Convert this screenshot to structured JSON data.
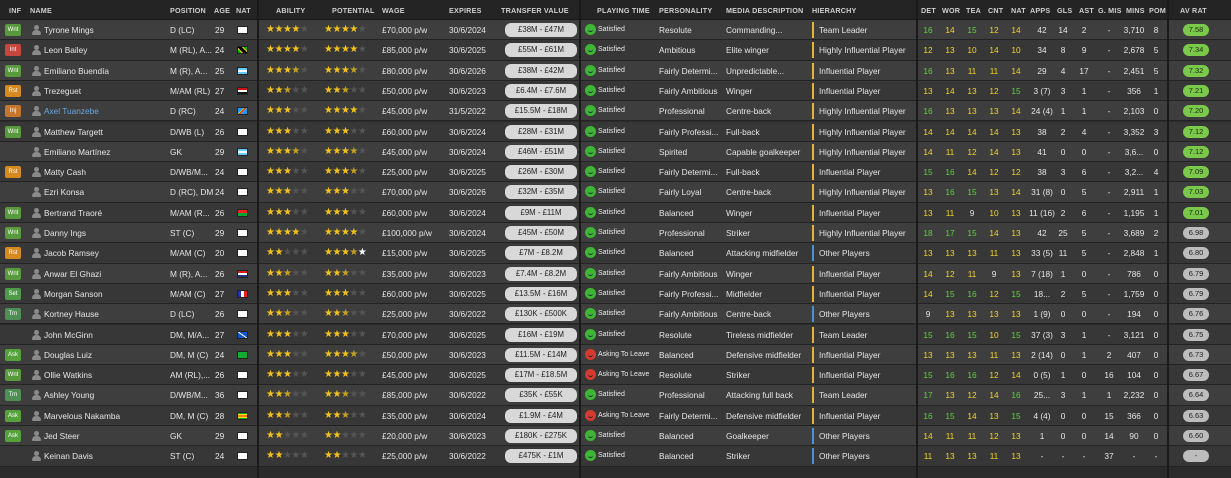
{
  "headers": {
    "inf": "INF",
    "name": "NAME",
    "position": "POSITION",
    "age": "AGE",
    "nat": "NAT",
    "ability": "ABILITY",
    "potential": "POTENTIAL",
    "wage": "WAGE",
    "expires": "EXPIRES",
    "transfer_value": "TRANSFER VALUE",
    "playing_time": "PLAYING TIME",
    "personality": "PERSONALITY",
    "media": "MEDIA DESCRIPTION",
    "hierarchy": "HIERARCHY",
    "det": "DET",
    "wor": "WOR",
    "tea": "TEA",
    "cnt": "CNT",
    "nat2": "NAT",
    "apps": "APPS",
    "gls": "GLS",
    "ast": "AST",
    "gmis": "G. MIS",
    "mins": "MINS",
    "pom": "POM",
    "avrat": "AV RAT"
  },
  "colors": {
    "star": "#f2c21b",
    "green": "#5ed13a",
    "yellow": "#f0d52a",
    "leader_bar": "#e6b437",
    "other_bar": "#4a92d8"
  },
  "players": [
    {
      "inf": "Wnt",
      "name": "Tyrone Mings",
      "pos": "D (LC)",
      "age": "29",
      "nat": "eng",
      "ab": 4,
      "pot": 4,
      "potw": 0,
      "wage": "£70,000 p/w",
      "exp": "30/6/2024",
      "tv": "£38M - £47M",
      "pt": "Satisfied",
      "mood": "s",
      "pers": "Resolute",
      "media": "Commanding...",
      "hier": "Team Leader",
      "hc": "leader",
      "det": "16",
      "wor": "14",
      "tea": "15",
      "cnt": "12",
      "nat2": "14",
      "apps": "42",
      "gls": "14",
      "ast": "2",
      "gmis": "-",
      "mins": "3,710",
      "pom": "8",
      "av": "7.58",
      "avc": "hi"
    },
    {
      "inf": "Int",
      "name": "Leon Bailey",
      "pos": "M (RL), A...",
      "age": "24",
      "nat": "jam",
      "ab": 4,
      "pot": 4,
      "potw": 0,
      "wage": "£85,000 p/w",
      "exp": "30/6/2025",
      "tv": "£55M - £61M",
      "pt": "Satisfied",
      "mood": "s",
      "pers": "Ambitious",
      "media": "Elite winger",
      "hier": "Highly Influential Player",
      "hc": "leader",
      "det": "12",
      "wor": "13",
      "tea": "10",
      "cnt": "14",
      "nat2": "10",
      "apps": "34",
      "gls": "8",
      "ast": "9",
      "gmis": "-",
      "mins": "2,678",
      "pom": "5",
      "av": "7.34",
      "avc": "hi"
    },
    {
      "inf": "Wnt",
      "name": "Emiliano Buendía",
      "pos": "M (R), A...",
      "age": "25",
      "nat": "arg",
      "ab": 3.5,
      "pot": 3.5,
      "potw": 0,
      "wage": "£80,000 p/w",
      "exp": "30/6/2026",
      "tv": "£38M - £42M",
      "pt": "Satisfied",
      "mood": "s",
      "pers": "Fairly Determi...",
      "media": "Unpredictable...",
      "hier": "Influential Player",
      "hc": "leader",
      "det": "16",
      "wor": "13",
      "tea": "11",
      "cnt": "11",
      "nat2": "14",
      "apps": "29",
      "gls": "4",
      "ast": "17",
      "gmis": "-",
      "mins": "2,451",
      "pom": "5",
      "av": "7.32",
      "avc": "hi"
    },
    {
      "inf": "Rst",
      "name": "Trezeguet",
      "pos": "M/AM (RL)",
      "age": "27",
      "nat": "egy",
      "ab": 2.5,
      "pot": 2.5,
      "potw": 0,
      "wage": "£50,000 p/w",
      "exp": "30/6/2023",
      "tv": "£6.4M - £7.6M",
      "pt": "Satisfied",
      "mood": "s",
      "pers": "Fairly Ambitious",
      "media": "Winger",
      "hier": "Influential Player",
      "hc": "leader",
      "det": "13",
      "wor": "14",
      "tea": "13",
      "cnt": "12",
      "nat2": "15",
      "apps": "3 (7)",
      "gls": "3",
      "ast": "1",
      "gmis": "-",
      "mins": "356",
      "pom": "1",
      "av": "7.21",
      "avc": "hi"
    },
    {
      "inf": "Inj",
      "name": "Axel Tuanzebe",
      "pos": "D (RC)",
      "age": "24",
      "nat": "cod",
      "ab": 3,
      "pot": 4,
      "potw": 0,
      "wage": "£45,000 p/w",
      "exp": "31/5/2022",
      "tv": "£15.5M - £18M",
      "pt": "Satisfied",
      "mood": "s",
      "pers": "Professional",
      "media": "Centre-back",
      "hier": "Highly Influential Player",
      "hc": "leader",
      "link": true,
      "det": "16",
      "wor": "13",
      "tea": "13",
      "cnt": "13",
      "nat2": "14",
      "apps": "24 (4)",
      "gls": "1",
      "ast": "1",
      "gmis": "-",
      "mins": "2,103",
      "pom": "0",
      "av": "7.20",
      "avc": "hi"
    },
    {
      "inf": "Wnt",
      "name": "Matthew Targett",
      "pos": "D/WB (L)",
      "age": "26",
      "nat": "eng",
      "ab": 3,
      "pot": 3,
      "potw": 0,
      "wage": "£60,000 p/w",
      "exp": "30/6/2024",
      "tv": "£28M - £31M",
      "pt": "Satisfied",
      "mood": "s",
      "pers": "Fairly Professi...",
      "media": "Full-back",
      "hier": "Highly Influential Player",
      "hc": "leader",
      "det": "14",
      "wor": "14",
      "tea": "14",
      "cnt": "14",
      "nat2": "13",
      "apps": "38",
      "gls": "2",
      "ast": "4",
      "gmis": "-",
      "mins": "3,352",
      "pom": "3",
      "av": "7.12",
      "avc": "hi"
    },
    {
      "inf": "",
      "name": "Emiliano Martínez",
      "pos": "GK",
      "age": "29",
      "nat": "arg",
      "ab": 3.5,
      "pot": 3.5,
      "potw": 0,
      "wage": "£45,000 p/w",
      "exp": "30/6/2024",
      "tv": "£46M - £51M",
      "pt": "Satisfied",
      "mood": "s",
      "pers": "Spirited",
      "media": "Capable goalkeeper",
      "hier": "Highly Influential Player",
      "hc": "leader",
      "det": "14",
      "wor": "11",
      "tea": "12",
      "cnt": "14",
      "nat2": "13",
      "apps": "41",
      "gls": "0",
      "ast": "0",
      "gmis": "-",
      "mins": "3,6...",
      "pom": "0",
      "av": "7.12",
      "avc": "hi"
    },
    {
      "inf": "Rst",
      "name": "Matty Cash",
      "pos": "D/WB/M...",
      "age": "24",
      "nat": "eng",
      "ab": 3,
      "pot": 3.5,
      "potw": 0,
      "wage": "£25,000 p/w",
      "exp": "30/6/2025",
      "tv": "£26M - £30M",
      "pt": "Satisfied",
      "mood": "s",
      "pers": "Fairly Determi...",
      "media": "Full-back",
      "hier": "Influential Player",
      "hc": "leader",
      "det": "15",
      "wor": "16",
      "tea": "14",
      "cnt": "12",
      "nat2": "12",
      "apps": "38",
      "gls": "3",
      "ast": "6",
      "gmis": "-",
      "mins": "3,2...",
      "pom": "4",
      "av": "7.09",
      "avc": "hi"
    },
    {
      "inf": "",
      "name": "Ezri Konsa",
      "pos": "D (RC), DM",
      "age": "24",
      "nat": "eng",
      "ab": 3,
      "pot": 3,
      "potw": 0,
      "wage": "£70,000 p/w",
      "exp": "30/6/2026",
      "tv": "£32M - £35M",
      "pt": "Satisfied",
      "mood": "s",
      "pers": "Fairly Loyal",
      "media": "Centre-back",
      "hier": "Highly Influential Player",
      "hc": "leader",
      "det": "13",
      "wor": "16",
      "tea": "15",
      "cnt": "13",
      "nat2": "14",
      "apps": "31 (8)",
      "gls": "0",
      "ast": "5",
      "gmis": "-",
      "mins": "2,911",
      "pom": "1",
      "av": "7.03",
      "avc": "hi"
    },
    {
      "inf": "Wnt",
      "name": "Bertrand Traoré",
      "pos": "M/AM (R...",
      "age": "26",
      "nat": "bfa",
      "ab": 3,
      "pot": 3,
      "potw": 0,
      "wage": "£60,000 p/w",
      "exp": "30/6/2024",
      "tv": "£9M - £11M",
      "pt": "Satisfied",
      "mood": "s",
      "pers": "Balanced",
      "media": "Winger",
      "hier": "Influential Player",
      "hc": "leader",
      "det": "13",
      "wor": "11",
      "tea": "9",
      "cnt": "10",
      "nat2": "13",
      "apps": "11 (16)",
      "gls": "2",
      "ast": "6",
      "gmis": "-",
      "mins": "1,195",
      "pom": "1",
      "av": "7.01",
      "avc": "hi"
    },
    {
      "inf": "Wnt",
      "name": "Danny Ings",
      "pos": "ST (C)",
      "age": "29",
      "nat": "eng",
      "ab": 4,
      "pot": 4,
      "potw": 0,
      "wage": "£100,000 p/w",
      "exp": "30/6/2024",
      "tv": "£45M - £50M",
      "pt": "Satisfied",
      "mood": "s",
      "pers": "Professional",
      "media": "Striker",
      "hier": "Highly Influential Player",
      "hc": "leader",
      "det": "18",
      "wor": "17",
      "tea": "15",
      "cnt": "14",
      "nat2": "13",
      "apps": "42",
      "gls": "25",
      "ast": "5",
      "gmis": "-",
      "mins": "3,689",
      "pom": "2",
      "av": "6.98",
      "avc": "lo"
    },
    {
      "inf": "Rst",
      "name": "Jacob Ramsey",
      "pos": "M/AM (C)",
      "age": "20",
      "nat": "eng",
      "ab": 2,
      "pot": 3.5,
      "potw": 1,
      "wage": "£15,000 p/w",
      "exp": "30/6/2025",
      "tv": "£7M - £8.2M",
      "pt": "Satisfied",
      "mood": "s",
      "pers": "Balanced",
      "media": "Attacking midfielder",
      "hier": "Other Players",
      "hc": "other",
      "det": "13",
      "wor": "13",
      "tea": "13",
      "cnt": "11",
      "nat2": "13",
      "apps": "33 (5)",
      "gls": "11",
      "ast": "5",
      "gmis": "-",
      "mins": "2,848",
      "pom": "1",
      "av": "6.80",
      "avc": "lo"
    },
    {
      "inf": "Wnt",
      "name": "Anwar El Ghazi",
      "pos": "M (R), A...",
      "age": "26",
      "nat": "ned",
      "ab": 2.5,
      "pot": 2.5,
      "potw": 0,
      "wage": "£35,000 p/w",
      "exp": "30/6/2023",
      "tv": "£7.4M - £8.2M",
      "pt": "Satisfied",
      "mood": "s",
      "pers": "Fairly Ambitious",
      "media": "Winger",
      "hier": "Influential Player",
      "hc": "leader",
      "det": "14",
      "wor": "12",
      "tea": "11",
      "cnt": "9",
      "nat2": "13",
      "apps": "7 (18)",
      "gls": "1",
      "ast": "0",
      "gmis": "-",
      "mins": "786",
      "pom": "0",
      "av": "6.79",
      "avc": "lo"
    },
    {
      "inf": "Set",
      "name": "Morgan Sanson",
      "pos": "M/AM (C)",
      "age": "27",
      "nat": "fra",
      "ab": 3,
      "pot": 3,
      "potw": 0,
      "wage": "£60,000 p/w",
      "exp": "30/6/2025",
      "tv": "£13.5M - £16M",
      "pt": "Satisfied",
      "mood": "s",
      "pers": "Fairly Professi...",
      "media": "Midfielder",
      "hier": "Influential Player",
      "hc": "leader",
      "det": "14",
      "wor": "15",
      "tea": "16",
      "cnt": "12",
      "nat2": "15",
      "apps": "18...",
      "gls": "2",
      "ast": "5",
      "gmis": "-",
      "mins": "1,759",
      "pom": "0",
      "av": "6.79",
      "avc": "lo"
    },
    {
      "inf": "Trn",
      "name": "Kortney Hause",
      "pos": "D (LC)",
      "age": "26",
      "nat": "eng",
      "ab": 2.5,
      "pot": 2.5,
      "potw": 0,
      "wage": "£25,000 p/w",
      "exp": "30/6/2022",
      "tv": "£130K - £500K",
      "pt": "Satisfied",
      "mood": "s",
      "pers": "Fairly Ambitious",
      "media": "Centre-back",
      "hier": "Other Players",
      "hc": "other",
      "det": "9",
      "wor": "13",
      "tea": "13",
      "cnt": "13",
      "nat2": "13",
      "apps": "1 (9)",
      "gls": "0",
      "ast": "0",
      "gmis": "-",
      "mins": "194",
      "pom": "0",
      "av": "6.76",
      "avc": "lo"
    },
    {
      "inf": "",
      "name": "John McGinn",
      "pos": "DM, M/A...",
      "age": "27",
      "nat": "sco",
      "ab": 3,
      "pot": 3,
      "potw": 0,
      "wage": "£70,000 p/w",
      "exp": "30/6/2025",
      "tv": "£16M - £19M",
      "pt": "Satisfied",
      "mood": "s",
      "pers": "Resolute",
      "media": "Tireless midfielder",
      "hier": "Team Leader",
      "hc": "leader",
      "det": "15",
      "wor": "16",
      "tea": "15",
      "cnt": "10",
      "nat2": "15",
      "apps": "37 (3)",
      "gls": "3",
      "ast": "1",
      "gmis": "-",
      "mins": "3,121",
      "pom": "0",
      "av": "6.75",
      "avc": "lo"
    },
    {
      "inf": "Ask",
      "name": "Douglas Luiz",
      "pos": "DM, M (C)",
      "age": "24",
      "nat": "bra",
      "ab": 3,
      "pot": 3.5,
      "potw": 0,
      "wage": "£50,000 p/w",
      "exp": "30/6/2023",
      "tv": "£11.5M - £14M",
      "pt": "Asking To Leave",
      "mood": "a",
      "pers": "Balanced",
      "media": "Defensive midfielder",
      "hier": "Influential Player",
      "hc": "leader",
      "det": "13",
      "wor": "13",
      "tea": "13",
      "cnt": "11",
      "nat2": "13",
      "apps": "2 (14)",
      "gls": "0",
      "ast": "1",
      "gmis": "2",
      "mins": "407",
      "pom": "0",
      "av": "6.73",
      "avc": "lo"
    },
    {
      "inf": "Wnt",
      "name": "Ollie Watkins",
      "pos": "AM (RL),...",
      "age": "26",
      "nat": "eng",
      "ab": 3,
      "pot": 3,
      "potw": 0,
      "wage": "£45,000 p/w",
      "exp": "30/6/2025",
      "tv": "£17M - £18.5M",
      "pt": "Asking To Leave",
      "mood": "a",
      "pers": "Resolute",
      "media": "Striker",
      "hier": "Influential Player",
      "hc": "leader",
      "det": "15",
      "wor": "16",
      "tea": "16",
      "cnt": "12",
      "nat2": "14",
      "apps": "0 (5)",
      "gls": "1",
      "ast": "0",
      "gmis": "16",
      "mins": "104",
      "pom": "0",
      "av": "6.67",
      "avc": "lo"
    },
    {
      "inf": "Trn",
      "name": "Ashley Young",
      "pos": "D/WB/M...",
      "age": "36",
      "nat": "eng",
      "ab": 2.5,
      "pot": 2.5,
      "potw": 0,
      "wage": "£85,000 p/w",
      "exp": "30/6/2022",
      "tv": "£35K - £55K",
      "pt": "Satisfied",
      "mood": "s",
      "pers": "Professional",
      "media": "Attacking full back",
      "hier": "Team Leader",
      "hc": "leader",
      "det": "17",
      "wor": "13",
      "tea": "12",
      "cnt": "14",
      "nat2": "16",
      "apps": "25...",
      "gls": "3",
      "ast": "1",
      "gmis": "1",
      "mins": "2,232",
      "pom": "0",
      "av": "6.64",
      "avc": "lo"
    },
    {
      "inf": "Ask",
      "name": "Marvelous Nakamba",
      "pos": "DM, M (C)",
      "age": "28",
      "nat": "zim",
      "ab": 2.5,
      "pot": 2.5,
      "potw": 0,
      "wage": "£35,000 p/w",
      "exp": "30/6/2024",
      "tv": "£1.9M - £4M",
      "pt": "Asking To Leave",
      "mood": "a",
      "pers": "Fairly Determi...",
      "media": "Defensive midfielder",
      "hier": "Influential Player",
      "hc": "leader",
      "det": "16",
      "wor": "15",
      "tea": "14",
      "cnt": "13",
      "nat2": "15",
      "apps": "4 (4)",
      "gls": "0",
      "ast": "0",
      "gmis": "15",
      "mins": "366",
      "pom": "0",
      "av": "6.63",
      "avc": "lo"
    },
    {
      "inf": "Ask",
      "name": "Jed Steer",
      "pos": "GK",
      "age": "29",
      "nat": "eng",
      "ab": 2,
      "pot": 2,
      "potw": 0,
      "wage": "£20,000 p/w",
      "exp": "30/6/2023",
      "tv": "£180K - £275K",
      "pt": "Satisfied",
      "mood": "s",
      "pers": "Balanced",
      "media": "Goalkeeper",
      "hier": "Other Players",
      "hc": "other",
      "det": "14",
      "wor": "11",
      "tea": "11",
      "cnt": "12",
      "nat2": "13",
      "apps": "1",
      "gls": "0",
      "ast": "0",
      "gmis": "14",
      "mins": "90",
      "pom": "0",
      "av": "6.60",
      "avc": "lo"
    },
    {
      "inf": "",
      "name": "Keinan Davis",
      "pos": "ST (C)",
      "age": "24",
      "nat": "eng",
      "ab": 2,
      "pot": 2,
      "potw": 0,
      "wage": "£25,000 p/w",
      "exp": "30/6/2022",
      "tv": "£475K - £1M",
      "pt": "Satisfied",
      "mood": "s",
      "pers": "Balanced",
      "media": "Striker",
      "hier": "Other Players",
      "hc": "other",
      "det": "11",
      "wor": "13",
      "tea": "13",
      "cnt": "11",
      "nat2": "13",
      "apps": "-",
      "gls": "-",
      "ast": "-",
      "gmis": "37",
      "mins": "-",
      "pom": "-",
      "av": "-",
      "avc": "lo"
    }
  ]
}
